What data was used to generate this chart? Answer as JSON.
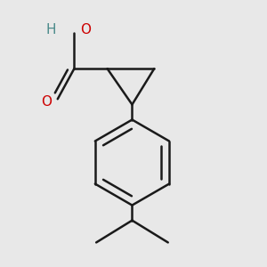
{
  "background_color": "#e8e8e8",
  "bond_color": "#1a1a1a",
  "oxygen_color": "#cc0000",
  "hydroxyl_color": "#4a8a8a",
  "line_width": 1.8,
  "font_size_atom": 11,
  "fig_size": [
    3.0,
    3.0
  ],
  "dpi": 100,
  "H_label": "H",
  "O_label": "O"
}
